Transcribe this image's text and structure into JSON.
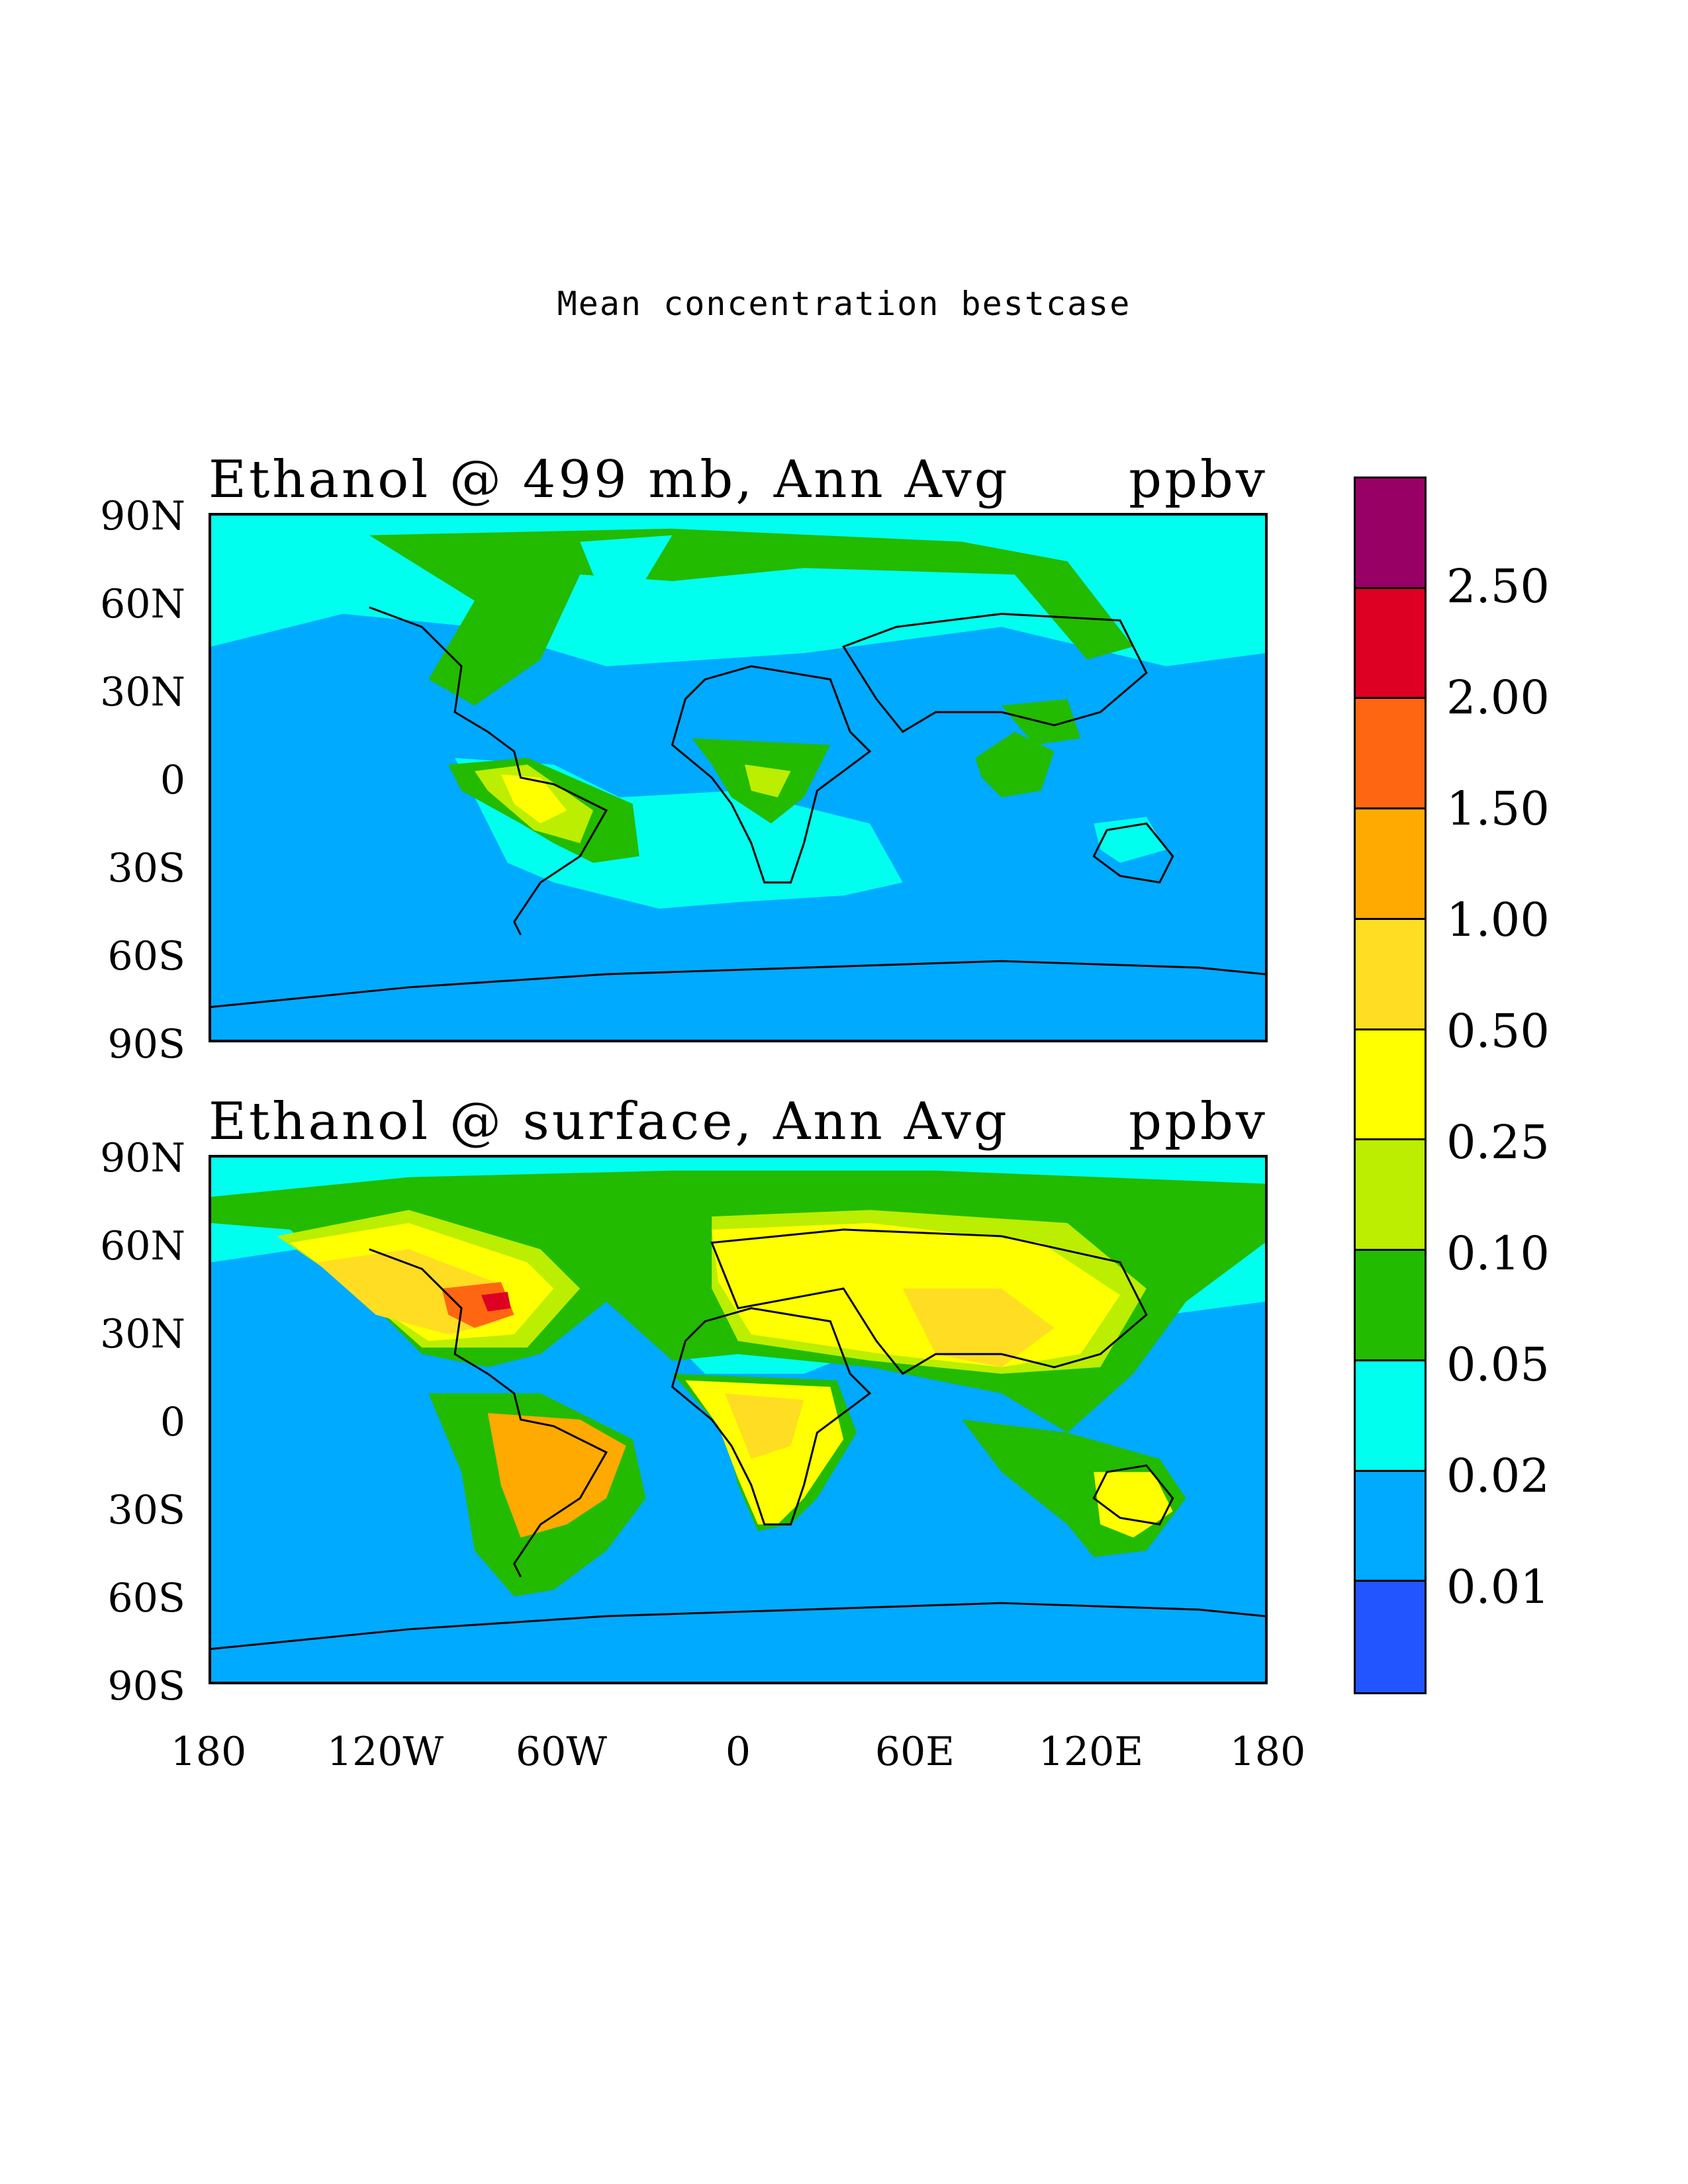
{
  "figure": {
    "super_title": "Mean concentration bestcase"
  },
  "panels": [
    {
      "title": "Ethanol @ 499 mb, Ann Avg",
      "unit": "ppbv"
    },
    {
      "title": "Ethanol @ surface, Ann Avg",
      "unit": "ppbv"
    }
  ],
  "axes": {
    "lat_ticks": [
      "90N",
      "60N",
      "30N",
      "0",
      "30S",
      "60S",
      "90S"
    ],
    "lon_ticks": [
      "180",
      "120W",
      "60W",
      "0",
      "60E",
      "120E",
      "180"
    ]
  },
  "colorbar": {
    "labels": [
      "2.50",
      "2.00",
      "1.50",
      "1.00",
      "0.50",
      "0.25",
      "0.10",
      "0.05",
      "0.02",
      "0.01"
    ],
    "colors": [
      "#990066",
      "#dd0022",
      "#ff6611",
      "#ffaa00",
      "#ffdd22",
      "#ffff00",
      "#bbee00",
      "#22bb00",
      "#00ffee",
      "#00aaff",
      "#2255ff"
    ]
  }
}
